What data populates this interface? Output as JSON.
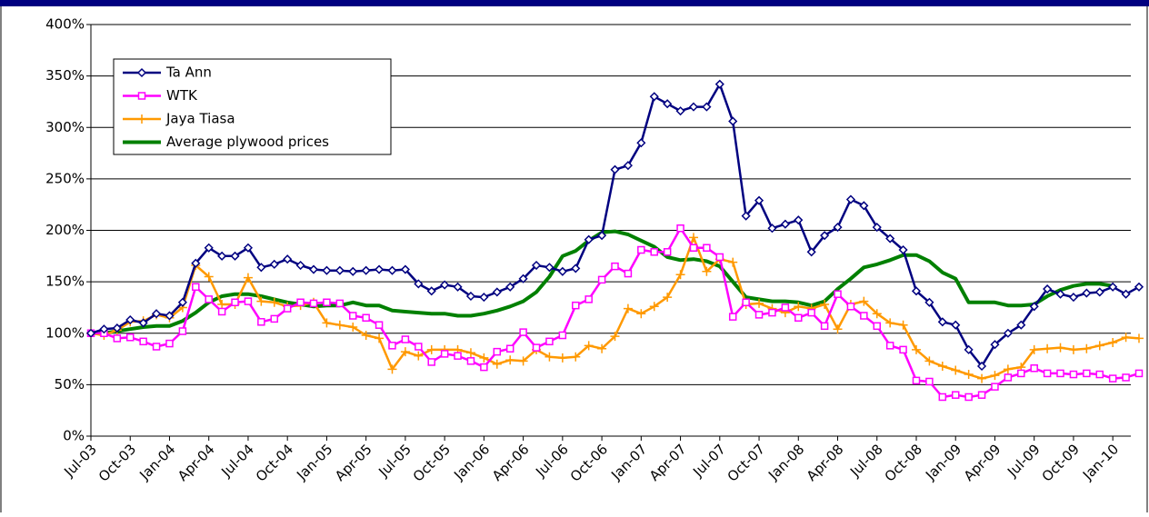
{
  "chart_data": {
    "type": "line",
    "categories": [
      "Jul-03",
      null,
      null,
      "Oct-03",
      null,
      null,
      "Jan-04",
      null,
      null,
      "Apr-04",
      null,
      null,
      "Jul-04",
      null,
      null,
      "Oct-04",
      null,
      null,
      "Jan-05",
      null,
      null,
      "Apr-05",
      null,
      null,
      "Jul-05",
      null,
      null,
      "Oct-05",
      null,
      null,
      "Jan-06",
      null,
      null,
      "Apr-06",
      null,
      null,
      "Jul-06",
      null,
      null,
      "Oct-06",
      null,
      null,
      "Jan-07",
      null,
      null,
      "Apr-07",
      null,
      null,
      "Jul-07",
      null,
      null,
      "Oct-07",
      null,
      null,
      "Jan-08",
      null,
      null,
      "Apr-08",
      null,
      null,
      "Jul-08",
      null,
      null,
      "Oct-08",
      null,
      null,
      "Jan-09",
      null,
      null,
      "Apr-09",
      null,
      null,
      "Jul-09",
      null,
      null,
      "Oct-09",
      null,
      null,
      "Jan-10",
      null,
      null
    ],
    "series": [
      {
        "name": "Ta Ann",
        "color": "#000080",
        "marker": "diamond",
        "width": 2.5,
        "values": [
          100,
          104,
          105,
          113,
          110,
          119,
          117,
          130,
          168,
          183,
          175,
          175,
          183,
          164,
          167,
          172,
          166,
          162,
          161,
          161,
          160,
          161,
          162,
          161,
          162,
          148,
          141,
          147,
          145,
          136,
          135,
          140,
          145,
          153,
          166,
          164,
          160,
          163,
          191,
          195,
          259,
          263,
          285,
          330,
          323,
          316,
          320,
          320,
          342,
          306,
          214,
          229,
          202,
          206,
          210,
          179,
          195,
          203,
          230,
          224,
          203,
          192,
          181,
          141,
          130,
          111,
          108,
          84,
          68,
          89,
          100,
          108,
          126,
          143,
          138,
          135,
          139,
          140,
          145,
          138,
          145
        ]
      },
      {
        "name": "WTK",
        "color": "#ff00ff",
        "marker": "square",
        "width": 2.5,
        "values": [
          100,
          100,
          95,
          96,
          92,
          87,
          90,
          102,
          145,
          133,
          121,
          130,
          131,
          111,
          114,
          124,
          130,
          129,
          130,
          129,
          117,
          115,
          108,
          88,
          94,
          87,
          72,
          80,
          78,
          73,
          67,
          82,
          85,
          101,
          86,
          92,
          98,
          127,
          133,
          152,
          165,
          158,
          181,
          179,
          179,
          202,
          183,
          183,
          174,
          116,
          130,
          118,
          120,
          125,
          115,
          120,
          107,
          138,
          126,
          117,
          107,
          88,
          84,
          54,
          53,
          38,
          40,
          38,
          40,
          48,
          57,
          61,
          66,
          61,
          61,
          60,
          61,
          60,
          56,
          57,
          61
        ]
      },
      {
        "name": "Jaya Tiasa",
        "color": "#ff9900",
        "marker": "plus",
        "width": 2.5,
        "values": [
          100,
          98,
          103,
          111,
          112,
          118,
          115,
          125,
          166,
          155,
          128,
          128,
          154,
          131,
          130,
          126,
          127,
          130,
          110,
          108,
          106,
          98,
          95,
          65,
          82,
          78,
          84,
          84,
          84,
          81,
          76,
          70,
          74,
          73,
          84,
          77,
          76,
          77,
          88,
          85,
          97,
          124,
          119,
          126,
          135,
          157,
          193,
          160,
          172,
          169,
          128,
          129,
          124,
          120,
          126,
          124,
          128,
          104,
          128,
          131,
          119,
          110,
          108,
          84,
          73,
          68,
          64,
          60,
          56,
          59,
          65,
          67,
          84,
          85,
          86,
          84,
          85,
          88,
          91,
          96,
          95
        ]
      },
      {
        "name": "Average plywood prices",
        "color": "#008000",
        "marker": "none",
        "width": 4,
        "values": [
          100,
          100,
          102,
          104,
          106,
          107,
          107,
          112,
          120,
          130,
          136,
          138,
          138,
          136,
          133,
          130,
          128,
          126,
          127,
          127,
          130,
          127,
          127,
          122,
          121,
          120,
          119,
          119,
          117,
          117,
          119,
          122,
          126,
          131,
          140,
          155,
          175,
          180,
          190,
          198,
          199,
          196,
          190,
          184,
          174,
          171,
          172,
          170,
          165,
          150,
          135,
          133,
          131,
          131,
          130,
          127,
          131,
          143,
          153,
          164,
          167,
          171,
          176,
          176,
          170,
          159,
          153,
          130,
          130,
          130,
          127,
          127,
          128,
          136,
          142,
          146,
          148,
          148,
          146,
          null,
          null
        ]
      }
    ],
    "ylim": [
      0,
      400
    ],
    "yticks": [
      {
        "value": 0,
        "label": "0%"
      },
      {
        "value": 50,
        "label": "50%"
      },
      {
        "value": 100,
        "label": "100%"
      },
      {
        "value": 150,
        "label": "150%"
      },
      {
        "value": 200,
        "label": "200%"
      },
      {
        "value": 250,
        "label": "250%"
      },
      {
        "value": 300,
        "label": "300%"
      },
      {
        "value": 350,
        "label": "350%"
      },
      {
        "value": 400,
        "label": "400%"
      }
    ],
    "grid": true,
    "legend": "upper-left",
    "header_color": "#000080"
  }
}
